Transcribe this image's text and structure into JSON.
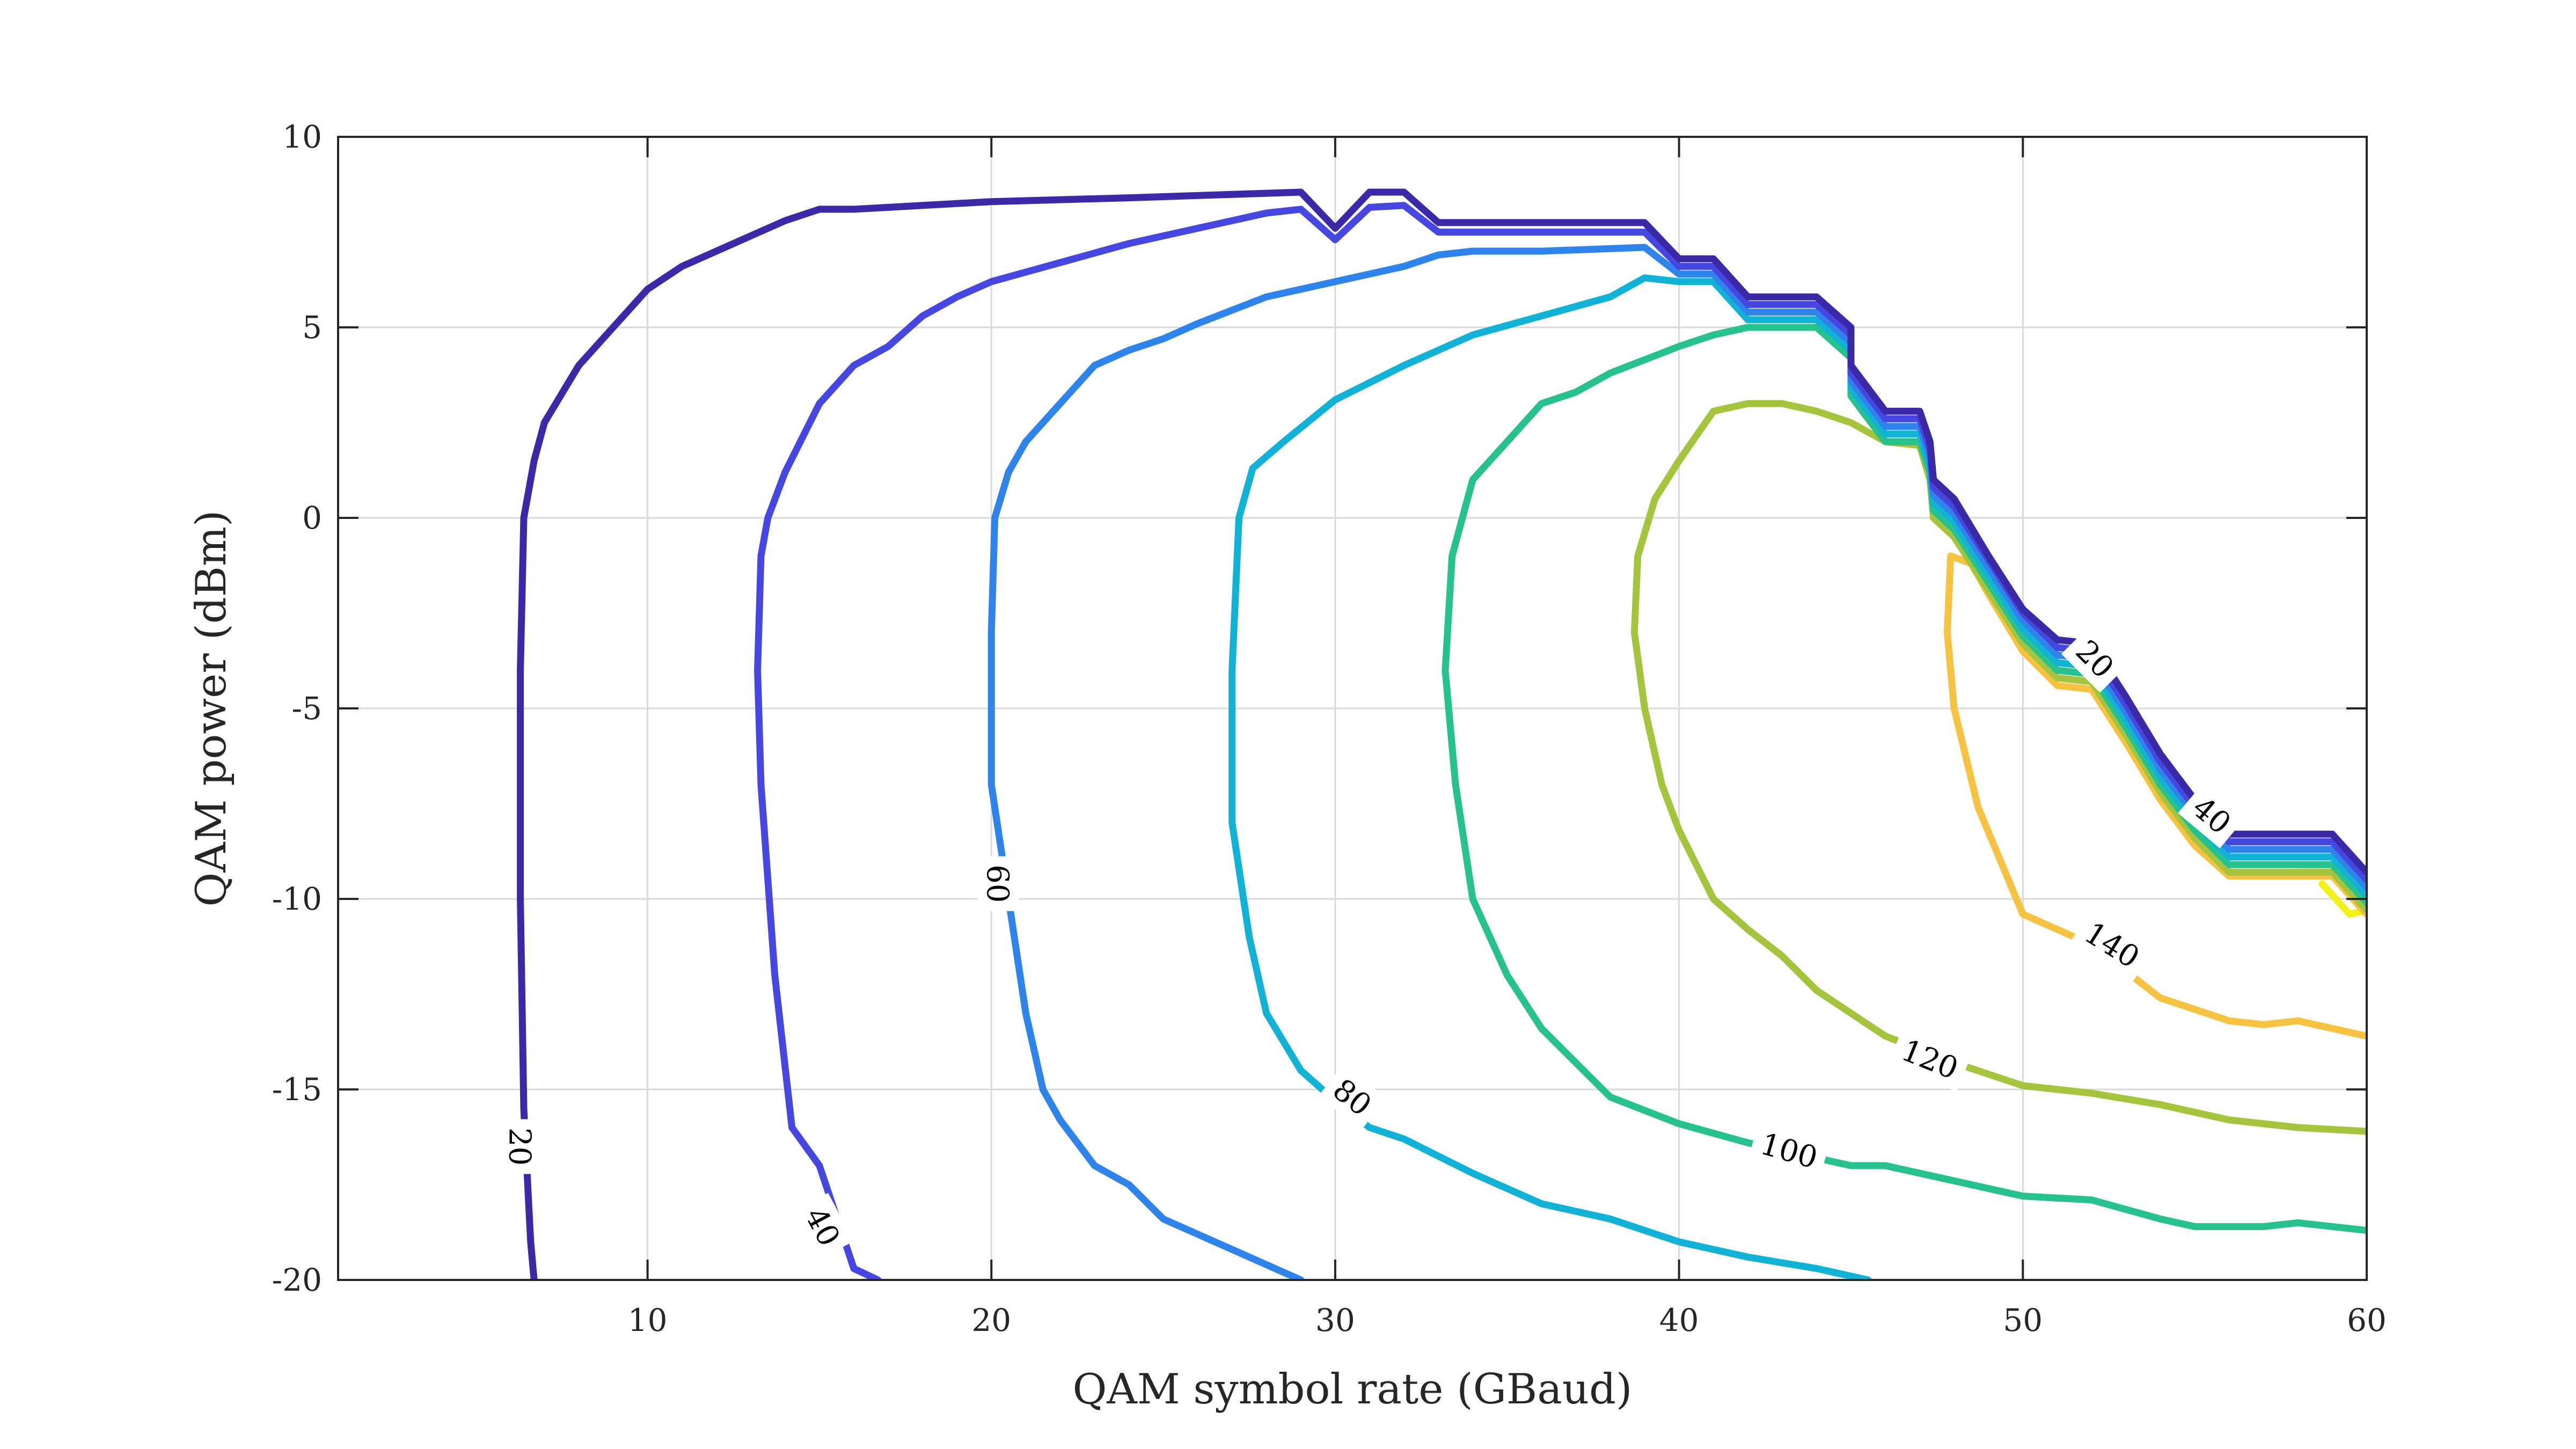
{
  "chart_data": {
    "type": "line",
    "subtype": "contour",
    "title": "",
    "xlabel": "QAM symbol rate (GBaud)",
    "ylabel": "QAM power (dBm)",
    "xlim": [
      1,
      60
    ],
    "ylim": [
      -20,
      10
    ],
    "xticks": [
      10,
      20,
      30,
      40,
      50,
      60
    ],
    "yticks": [
      -20,
      -15,
      -10,
      -5,
      0,
      5,
      10
    ],
    "grid": true,
    "legend": "none",
    "series": [
      {
        "level": "20",
        "color": "#3b2aa8",
        "points": [
          [
            6.7,
            -20
          ],
          [
            6.6,
            -19
          ],
          [
            6.4,
            -15.5
          ],
          [
            6.3,
            -10
          ],
          [
            6.3,
            -4
          ],
          [
            6.4,
            0
          ],
          [
            6.7,
            1.5
          ],
          [
            7,
            2.5
          ],
          [
            8,
            4
          ],
          [
            9,
            5
          ],
          [
            10,
            6
          ],
          [
            11,
            6.6
          ],
          [
            12,
            7
          ],
          [
            13,
            7.4
          ],
          [
            14,
            7.8
          ],
          [
            15,
            8.1
          ],
          [
            16,
            8.1
          ],
          [
            18,
            8.2
          ],
          [
            20,
            8.3
          ],
          [
            24,
            8.4
          ],
          [
            29,
            8.55
          ],
          [
            30,
            7.6
          ],
          [
            31,
            8.55
          ],
          [
            32,
            8.55
          ],
          [
            33,
            7.75
          ],
          [
            39,
            7.75
          ],
          [
            40,
            6.8
          ],
          [
            41,
            6.8
          ],
          [
            42,
            5.8
          ],
          [
            44,
            5.8
          ],
          [
            45,
            5
          ],
          [
            45,
            4
          ],
          [
            46,
            2.8
          ],
          [
            47,
            2.8
          ],
          [
            47.3,
            2
          ],
          [
            47.4,
            1
          ],
          [
            48,
            0.5
          ],
          [
            49,
            -1
          ],
          [
            50,
            -2.4
          ],
          [
            51,
            -3.2
          ],
          [
            52,
            -3.3
          ],
          [
            53,
            -4.7
          ],
          [
            54,
            -6.2
          ],
          [
            55,
            -7.4
          ],
          [
            56,
            -8.3
          ],
          [
            59,
            -8.3
          ],
          [
            60,
            -9.3
          ]
        ]
      },
      {
        "level": "40",
        "color": "#4647e0",
        "points": [
          [
            16.7,
            -20
          ],
          [
            16,
            -19.7
          ],
          [
            15,
            -17
          ],
          [
            14.2,
            -16
          ],
          [
            13.7,
            -12
          ],
          [
            13.3,
            -7
          ],
          [
            13.2,
            -4
          ],
          [
            13.3,
            -1
          ],
          [
            13.5,
            0
          ],
          [
            14,
            1.2
          ],
          [
            15,
            3
          ],
          [
            16,
            4
          ],
          [
            17,
            4.5
          ],
          [
            18,
            5.3
          ],
          [
            19,
            5.8
          ],
          [
            20,
            6.2
          ],
          [
            22,
            6.7
          ],
          [
            24,
            7.2
          ],
          [
            26,
            7.6
          ],
          [
            28,
            8
          ],
          [
            29,
            8.1
          ],
          [
            30,
            7.3
          ],
          [
            31,
            8.15
          ],
          [
            32,
            8.2
          ],
          [
            33,
            7.5
          ],
          [
            39,
            7.5
          ],
          [
            40,
            6.6
          ],
          [
            41,
            6.6
          ],
          [
            42,
            5.6
          ],
          [
            44,
            5.6
          ],
          [
            45,
            4.8
          ],
          [
            45,
            3.8
          ],
          [
            46,
            2.6
          ],
          [
            47,
            2.6
          ],
          [
            47.3,
            1.8
          ],
          [
            47.4,
            0.8
          ],
          [
            48,
            0.3
          ],
          [
            49,
            -1.1
          ],
          [
            50,
            -2.5
          ],
          [
            51,
            -3.4
          ],
          [
            52,
            -3.5
          ],
          [
            53,
            -4.9
          ],
          [
            54,
            -6.4
          ],
          [
            55,
            -7.6
          ],
          [
            56,
            -8.5
          ],
          [
            59,
            -8.5
          ],
          [
            60,
            -9.5
          ]
        ]
      },
      {
        "level": "60",
        "color": "#2f84ec",
        "points": [
          [
            29,
            -20
          ],
          [
            27,
            -19.2
          ],
          [
            25,
            -18.4
          ],
          [
            24,
            -17.5
          ],
          [
            23,
            -17
          ],
          [
            22,
            -15.8
          ],
          [
            21.5,
            -15
          ],
          [
            21,
            -13
          ],
          [
            20.5,
            -10
          ],
          [
            20,
            -7
          ],
          [
            20,
            -3
          ],
          [
            20.1,
            0
          ],
          [
            20.5,
            1.2
          ],
          [
            21,
            2
          ],
          [
            22,
            3
          ],
          [
            23,
            4
          ],
          [
            24,
            4.4
          ],
          [
            25,
            4.7
          ],
          [
            26,
            5.1
          ],
          [
            28,
            5.8
          ],
          [
            30,
            6.2
          ],
          [
            32,
            6.6
          ],
          [
            33,
            6.9
          ],
          [
            34,
            7
          ],
          [
            36,
            7
          ],
          [
            39,
            7.1
          ],
          [
            40,
            6.4
          ],
          [
            41,
            6.4
          ],
          [
            42,
            5.4
          ],
          [
            44,
            5.4
          ],
          [
            45,
            4.6
          ],
          [
            45,
            3.6
          ],
          [
            46,
            2.4
          ],
          [
            47,
            2.4
          ],
          [
            47.3,
            1.6
          ],
          [
            47.4,
            0.6
          ],
          [
            48,
            0.1
          ],
          [
            49,
            -1.3
          ],
          [
            50,
            -2.7
          ],
          [
            51,
            -3.6
          ],
          [
            52,
            -3.7
          ],
          [
            53,
            -5.1
          ],
          [
            54,
            -6.6
          ],
          [
            55,
            -7.8
          ],
          [
            56,
            -8.7
          ],
          [
            59,
            -8.7
          ],
          [
            60,
            -9.7
          ]
        ]
      },
      {
        "level": "80",
        "color": "#12b2d6",
        "points": [
          [
            45.5,
            -20
          ],
          [
            44,
            -19.7
          ],
          [
            42,
            -19.4
          ],
          [
            40,
            -19
          ],
          [
            38,
            -18.4
          ],
          [
            36,
            -18
          ],
          [
            34,
            -17.2
          ],
          [
            32,
            -16.3
          ],
          [
            31,
            -16
          ],
          [
            30,
            -15.3
          ],
          [
            29,
            -14.5
          ],
          [
            28,
            -13
          ],
          [
            27.5,
            -11
          ],
          [
            27,
            -8
          ],
          [
            27,
            -4
          ],
          [
            27.2,
            0
          ],
          [
            27.6,
            1.3
          ],
          [
            28.5,
            2
          ],
          [
            30,
            3.1
          ],
          [
            32,
            4
          ],
          [
            34,
            4.8
          ],
          [
            36,
            5.3
          ],
          [
            38,
            5.8
          ],
          [
            39,
            6.3
          ],
          [
            40,
            6.2
          ],
          [
            41,
            6.2
          ],
          [
            42,
            5.2
          ],
          [
            44,
            5.2
          ],
          [
            45,
            4.4
          ],
          [
            45,
            3.4
          ],
          [
            46,
            2.2
          ],
          [
            47,
            2.2
          ],
          [
            47.3,
            1.4
          ],
          [
            47.4,
            0.4
          ],
          [
            48,
            -0.1
          ],
          [
            49,
            -1.5
          ],
          [
            50,
            -2.9
          ],
          [
            51,
            -3.8
          ],
          [
            52,
            -3.9
          ],
          [
            53,
            -5.3
          ],
          [
            54,
            -6.8
          ],
          [
            55,
            -8
          ],
          [
            56,
            -8.9
          ],
          [
            59,
            -8.9
          ],
          [
            60,
            -9.9
          ]
        ]
      },
      {
        "level": "100",
        "color": "#27c18e",
        "points": [
          [
            60,
            -18.7
          ],
          [
            58,
            -18.5
          ],
          [
            57,
            -18.6
          ],
          [
            55,
            -18.6
          ],
          [
            54,
            -18.4
          ],
          [
            52,
            -17.9
          ],
          [
            50,
            -17.8
          ],
          [
            48,
            -17.4
          ],
          [
            46,
            -17
          ],
          [
            45,
            -17
          ],
          [
            44,
            -16.8
          ],
          [
            42,
            -16.4
          ],
          [
            40,
            -15.9
          ],
          [
            38,
            -15.2
          ],
          [
            37,
            -14.3
          ],
          [
            36,
            -13.4
          ],
          [
            35,
            -12
          ],
          [
            34,
            -10
          ],
          [
            33.5,
            -7
          ],
          [
            33.2,
            -4
          ],
          [
            33.4,
            -1
          ],
          [
            34,
            1
          ],
          [
            35,
            2
          ],
          [
            36,
            3
          ],
          [
            37,
            3.3
          ],
          [
            38,
            3.8
          ],
          [
            40,
            4.5
          ],
          [
            41,
            4.8
          ],
          [
            42,
            5
          ],
          [
            44,
            5
          ],
          [
            45,
            4.2
          ],
          [
            45,
            3.2
          ],
          [
            46,
            2
          ],
          [
            47,
            2
          ],
          [
            47.3,
            1.2
          ],
          [
            47.4,
            0.2
          ],
          [
            48,
            -0.3
          ],
          [
            49,
            -1.7
          ],
          [
            50,
            -3.1
          ],
          [
            51,
            -4
          ],
          [
            52,
            -4.1
          ],
          [
            53,
            -5.5
          ],
          [
            54,
            -7
          ],
          [
            55,
            -8.2
          ],
          [
            56,
            -9.1
          ],
          [
            59,
            -9.1
          ],
          [
            60,
            -10.1
          ]
        ]
      },
      {
        "level": "120",
        "color": "#a3c43c",
        "points": [
          [
            60,
            -16.1
          ],
          [
            58,
            -16
          ],
          [
            56,
            -15.8
          ],
          [
            54,
            -15.4
          ],
          [
            52,
            -15.1
          ],
          [
            50,
            -14.9
          ],
          [
            48,
            -14.3
          ],
          [
            46,
            -13.6
          ],
          [
            44,
            -12.4
          ],
          [
            43,
            -11.5
          ],
          [
            42,
            -10.8
          ],
          [
            41,
            -10
          ],
          [
            40,
            -8.2
          ],
          [
            39.5,
            -7
          ],
          [
            39,
            -5
          ],
          [
            38.7,
            -3
          ],
          [
            38.8,
            -1
          ],
          [
            39.3,
            0.5
          ],
          [
            40,
            1.5
          ],
          [
            41,
            2.8
          ],
          [
            42,
            3
          ],
          [
            43,
            3
          ],
          [
            44,
            2.8
          ],
          [
            45,
            2.5
          ],
          [
            46,
            2
          ],
          [
            47,
            1.9
          ],
          [
            47.3,
            1
          ],
          [
            47.4,
            0
          ],
          [
            48,
            -0.5
          ],
          [
            49,
            -1.9
          ],
          [
            50,
            -3.3
          ],
          [
            51,
            -4.2
          ],
          [
            52,
            -4.3
          ],
          [
            53,
            -5.7
          ],
          [
            54,
            -7.2
          ],
          [
            55,
            -8.4
          ],
          [
            56,
            -9.3
          ],
          [
            59,
            -9.3
          ],
          [
            60,
            -10.3
          ]
        ]
      },
      {
        "level": "140",
        "color": "#f6c242",
        "points": [
          [
            60,
            -13.6
          ],
          [
            59,
            -13.4
          ],
          [
            58,
            -13.2
          ],
          [
            57,
            -13.3
          ],
          [
            56,
            -13.2
          ],
          [
            54,
            -12.6
          ],
          [
            52,
            -11.2
          ],
          [
            50,
            -10.4
          ],
          [
            48.7,
            -7.6
          ],
          [
            48,
            -5
          ],
          [
            47.8,
            -3
          ],
          [
            47.9,
            -1
          ],
          [
            48.5,
            -1.2
          ],
          [
            49,
            -2
          ],
          [
            50,
            -3.5
          ],
          [
            51,
            -4.4
          ],
          [
            52,
            -4.5
          ],
          [
            53,
            -5.9
          ],
          [
            54,
            -7.4
          ],
          [
            55,
            -8.6
          ],
          [
            56,
            -9.4
          ],
          [
            59,
            -9.4
          ],
          [
            60,
            -10.4
          ]
        ]
      },
      {
        "level": "",
        "color": "#f2f21a",
        "points": [
          [
            58,
            -9.3
          ],
          [
            59,
            -9.3
          ],
          [
            60,
            -10.3
          ],
          [
            59.5,
            -10.4
          ],
          [
            58.7,
            -9.6
          ]
        ]
      }
    ],
    "contour_labels": [
      {
        "text": "20",
        "x": 6.3,
        "y": -16.5,
        "angle": 90
      },
      {
        "text": "40",
        "x": 15.1,
        "y": -18.6,
        "angle": 62
      },
      {
        "text": "60",
        "x": 20.2,
        "y": -9.6,
        "angle": 90
      },
      {
        "text": "80",
        "x": 30.5,
        "y": -15.2,
        "angle": 38
      },
      {
        "text": "100",
        "x": 43.2,
        "y": -16.6,
        "angle": 16
      },
      {
        "text": "120",
        "x": 47.3,
        "y": -14.2,
        "angle": 22
      },
      {
        "text": "140",
        "x": 52.6,
        "y": -11.2,
        "angle": 32
      },
      {
        "text": "20",
        "x": 52.1,
        "y": -3.7,
        "angle": 45
      },
      {
        "text": "40",
        "x": 55.5,
        "y": -7.8,
        "angle": 40
      }
    ]
  }
}
